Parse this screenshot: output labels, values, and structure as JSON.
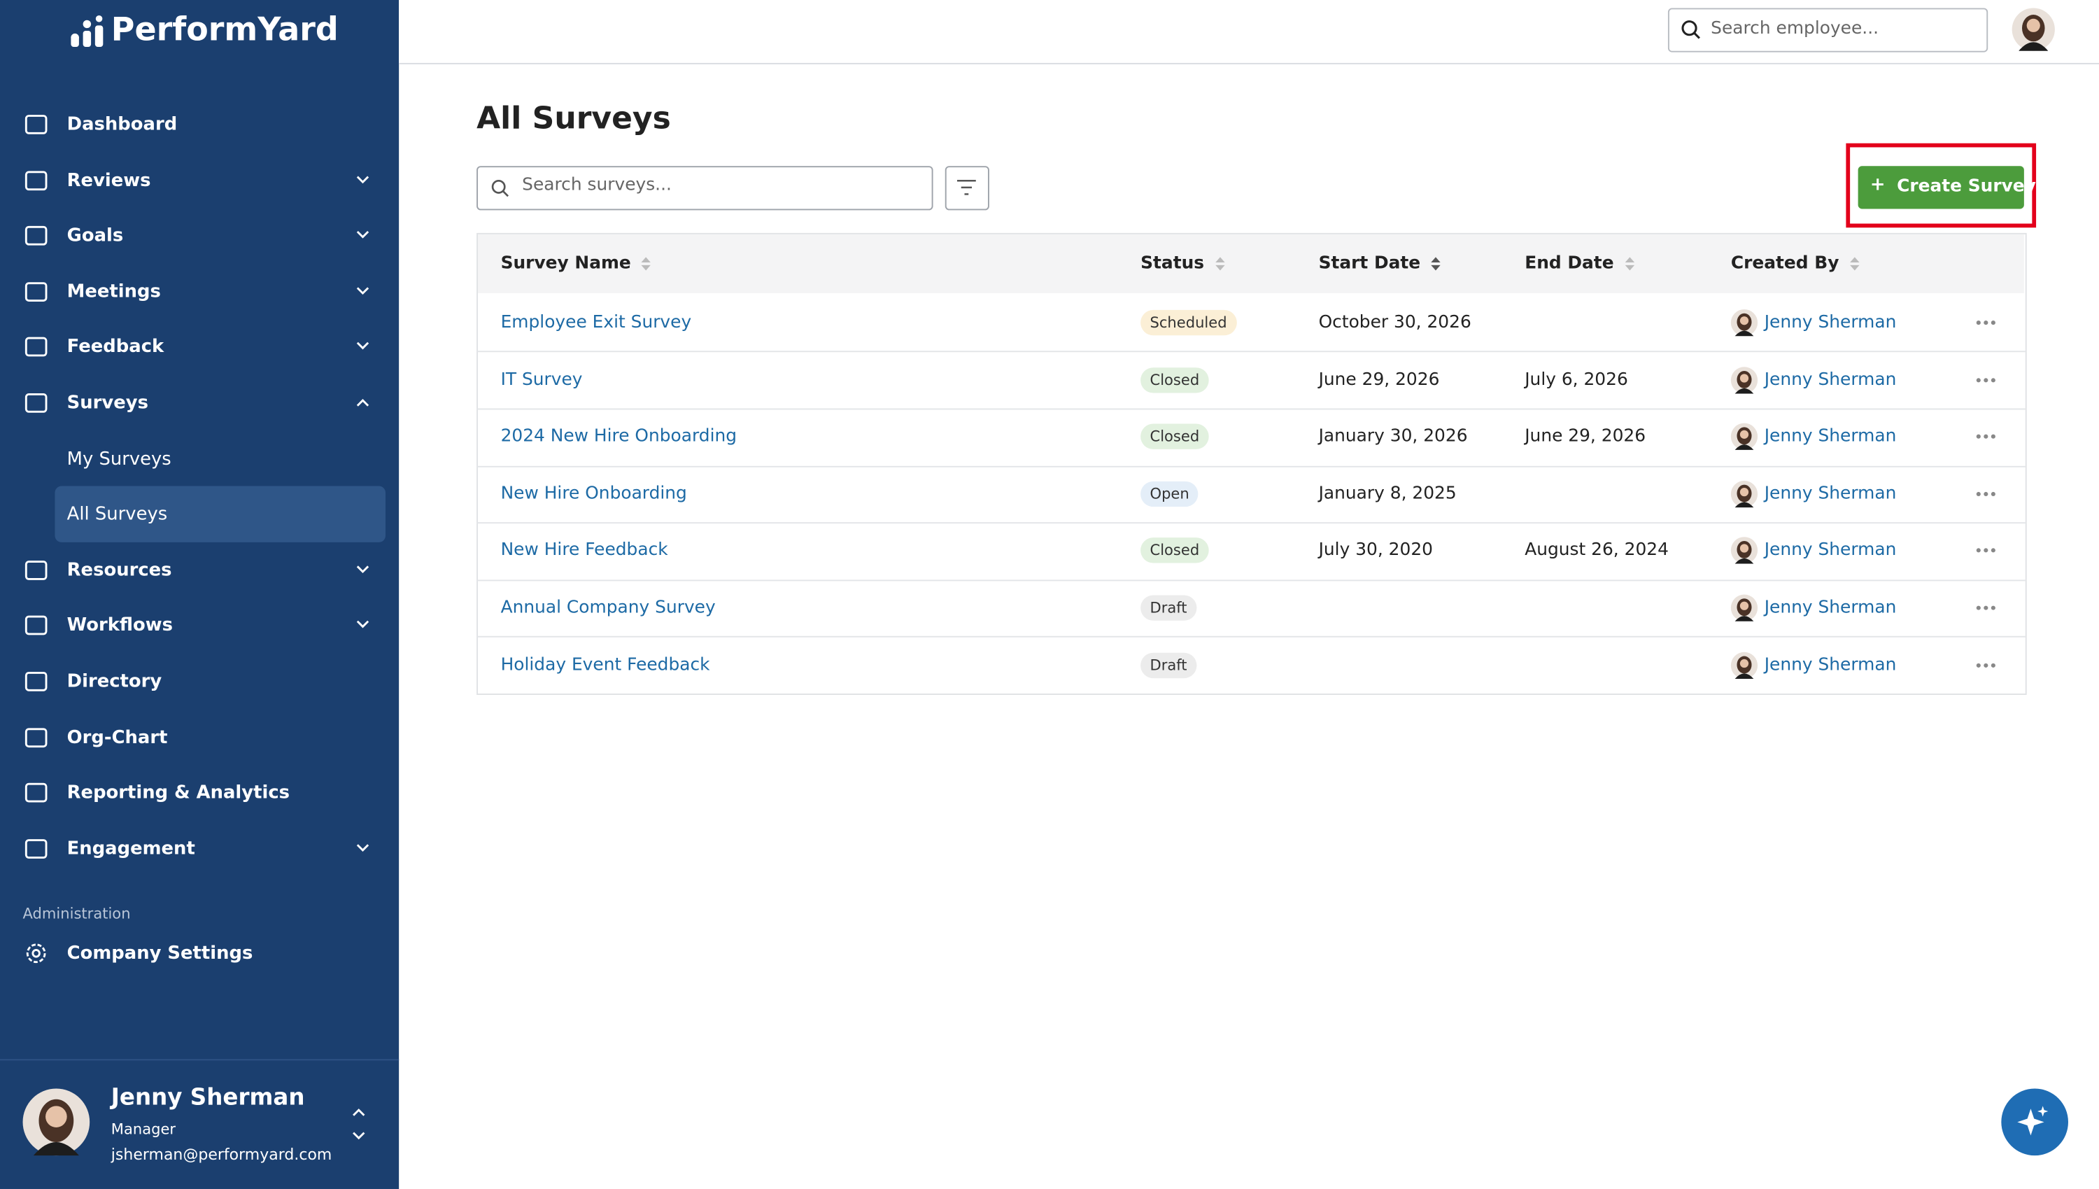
{
  "sidebar": {
    "logo": "PerformYard",
    "nav": [
      {
        "label": "Dashboard"
      },
      {
        "label": "Reviews"
      },
      {
        "label": "Goals"
      },
      {
        "label": "Meetings"
      },
      {
        "label": "Feedback"
      },
      {
        "label": "Surveys",
        "children": [
          "My Surveys",
          "All Surveys"
        ]
      },
      {
        "label": "Resources"
      },
      {
        "label": "Workflows"
      },
      {
        "label": "Directory"
      },
      {
        "label": "Org-Chart"
      },
      {
        "label": "Reporting & Analytics"
      },
      {
        "label": "Engagement"
      }
    ],
    "admin_heading": "Administration",
    "admin_item": "Company Settings",
    "user": {
      "name": "Jenny Sherman",
      "role": "Manager",
      "email": "jsherman@performyard.com"
    }
  },
  "topbar": {
    "search_placeholder": "Search employee..."
  },
  "main": {
    "title": "All Surveys",
    "search_placeholder": "Search surveys...",
    "create_button": "Create Survey",
    "table": {
      "headers": [
        "Survey Name",
        "Status",
        "Start Date",
        "End Date",
        "Created By"
      ],
      "rows": [
        {
          "name": "Employee Exit Survey",
          "status": "Scheduled",
          "status_color": "#fbefd6",
          "start": "October 30, 2026",
          "end": null,
          "created_by": "Jenny Sherman"
        },
        {
          "name": "IT Survey",
          "status": "Closed",
          "status_color": "#e2f1df",
          "start": "June 29, 2026",
          "end": "July 6, 2026",
          "created_by": "Jenny Sherman"
        },
        {
          "name": "2024 New Hire Onboarding",
          "status": "Closed",
          "status_color": "#e2f1df",
          "start": "January 30, 2026",
          "end": "June 29, 2026",
          "created_by": "Jenny Sherman"
        },
        {
          "name": "New Hire Onboarding",
          "status": "Open",
          "status_color": "#e4eef8",
          "start": "January 8, 2025",
          "end": null,
          "created_by": "Jenny Sherman"
        },
        {
          "name": "New Hire Feedback",
          "status": "Closed",
          "status_color": "#e2f1df",
          "start": "July 30, 2020",
          "end": "August 26, 2024",
          "created_by": "Jenny Sherman"
        },
        {
          "name": "Annual Company Survey",
          "status": "Draft",
          "status_color": "#ececec",
          "start": null,
          "end": null,
          "created_by": "Jenny Sherman"
        },
        {
          "name": "Holiday Event Feedback",
          "status": "Draft",
          "status_color": "#ececec",
          "start": null,
          "end": null,
          "created_by": "Jenny Sherman"
        }
      ]
    }
  }
}
